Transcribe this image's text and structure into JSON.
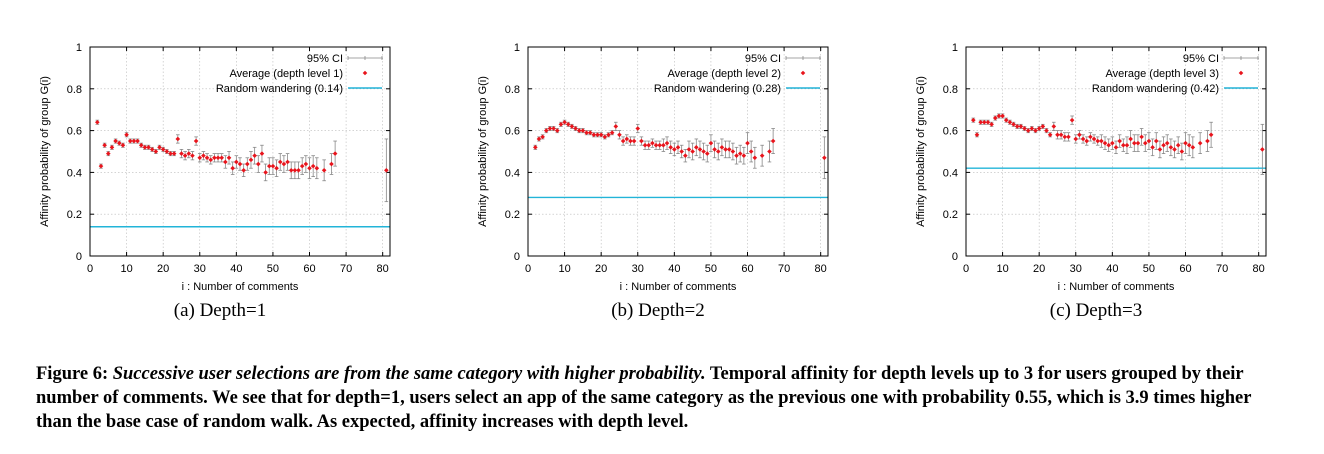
{
  "chart_data": [
    {
      "type": "scatter",
      "sublabel": "(a) Depth=1",
      "xlabel": "i : Number of comments",
      "ylabel": "Affinity probability of group G(i)",
      "xlim": [
        0,
        82
      ],
      "ylim": [
        0,
        1
      ],
      "xticks": [
        "0",
        "10",
        "20",
        "30",
        "40",
        "50",
        "60",
        "70",
        "80"
      ],
      "yticks": [
        "0",
        "0.2",
        "0.4",
        "0.6",
        "0.8",
        "1"
      ],
      "grid": true,
      "legend_position": "top-right",
      "legend": {
        "ci": "95% CI",
        "avg": "Average (depth level 1)",
        "random": "Random wandering (0.14)"
      },
      "random_baseline": 0.14,
      "x": [
        2,
        3,
        4,
        5,
        6,
        7,
        8,
        9,
        10,
        11,
        12,
        13,
        14,
        15,
        16,
        17,
        18,
        19,
        20,
        21,
        22,
        23,
        24,
        25,
        26,
        27,
        28,
        29,
        30,
        31,
        32,
        33,
        34,
        35,
        36,
        37,
        38,
        39,
        40,
        41,
        42,
        43,
        44,
        45,
        46,
        47,
        48,
        49,
        50,
        51,
        52,
        53,
        54,
        55,
        56,
        57,
        58,
        59,
        60,
        61,
        62,
        64,
        66,
        67,
        81
      ],
      "y": [
        0.64,
        0.43,
        0.53,
        0.49,
        0.52,
        0.55,
        0.54,
        0.53,
        0.58,
        0.55,
        0.55,
        0.55,
        0.53,
        0.52,
        0.52,
        0.51,
        0.5,
        0.52,
        0.51,
        0.5,
        0.49,
        0.49,
        0.56,
        0.49,
        0.48,
        0.49,
        0.48,
        0.55,
        0.47,
        0.48,
        0.47,
        0.46,
        0.47,
        0.47,
        0.47,
        0.45,
        0.47,
        0.42,
        0.45,
        0.44,
        0.41,
        0.44,
        0.46,
        0.48,
        0.44,
        0.49,
        0.4,
        0.43,
        0.43,
        0.42,
        0.45,
        0.44,
        0.45,
        0.41,
        0.41,
        0.41,
        0.43,
        0.44,
        0.42,
        0.43,
        0.42,
        0.41,
        0.44,
        0.49,
        0.41
      ],
      "ci": [
        0.01,
        0.01,
        0.01,
        0.01,
        0.01,
        0.01,
        0.01,
        0.01,
        0.01,
        0.01,
        0.01,
        0.01,
        0.01,
        0.01,
        0.01,
        0.01,
        0.01,
        0.01,
        0.01,
        0.01,
        0.01,
        0.01,
        0.02,
        0.02,
        0.02,
        0.02,
        0.02,
        0.02,
        0.02,
        0.02,
        0.02,
        0.02,
        0.02,
        0.02,
        0.02,
        0.03,
        0.03,
        0.03,
        0.03,
        0.03,
        0.03,
        0.03,
        0.04,
        0.04,
        0.04,
        0.04,
        0.04,
        0.04,
        0.04,
        0.04,
        0.04,
        0.04,
        0.04,
        0.04,
        0.04,
        0.04,
        0.04,
        0.04,
        0.05,
        0.05,
        0.05,
        0.05,
        0.05,
        0.06,
        0.15
      ]
    },
    {
      "type": "scatter",
      "sublabel": "(b) Depth=2",
      "xlabel": "i : Number of comments",
      "ylabel": "Affinity probability of group G(i)",
      "xlim": [
        0,
        82
      ],
      "ylim": [
        0,
        1
      ],
      "xticks": [
        "0",
        "10",
        "20",
        "30",
        "40",
        "50",
        "60",
        "70",
        "80"
      ],
      "yticks": [
        "0",
        "0.2",
        "0.4",
        "0.6",
        "0.8",
        "1"
      ],
      "grid": true,
      "legend_position": "top-right",
      "legend": {
        "ci": "95% CI",
        "avg": "Average (depth level 2)",
        "random": "Random wandering (0.28)"
      },
      "random_baseline": 0.28,
      "x": [
        2,
        3,
        4,
        5,
        6,
        7,
        8,
        9,
        10,
        11,
        12,
        13,
        14,
        15,
        16,
        17,
        18,
        19,
        20,
        21,
        22,
        23,
        24,
        25,
        26,
        27,
        28,
        29,
        30,
        31,
        32,
        33,
        34,
        35,
        36,
        37,
        38,
        39,
        40,
        41,
        42,
        43,
        44,
        45,
        46,
        47,
        48,
        49,
        50,
        51,
        52,
        53,
        54,
        55,
        56,
        57,
        58,
        59,
        60,
        61,
        62,
        64,
        66,
        67,
        81
      ],
      "y": [
        0.52,
        0.56,
        0.57,
        0.6,
        0.61,
        0.61,
        0.6,
        0.63,
        0.64,
        0.63,
        0.62,
        0.61,
        0.6,
        0.6,
        0.59,
        0.59,
        0.58,
        0.58,
        0.58,
        0.57,
        0.58,
        0.59,
        0.62,
        0.58,
        0.55,
        0.56,
        0.55,
        0.55,
        0.61,
        0.55,
        0.53,
        0.53,
        0.54,
        0.53,
        0.53,
        0.53,
        0.54,
        0.52,
        0.51,
        0.52,
        0.5,
        0.48,
        0.51,
        0.5,
        0.52,
        0.51,
        0.5,
        0.49,
        0.54,
        0.51,
        0.5,
        0.52,
        0.51,
        0.51,
        0.5,
        0.48,
        0.49,
        0.48,
        0.54,
        0.5,
        0.47,
        0.48,
        0.5,
        0.55,
        0.47
      ],
      "ci": [
        0.01,
        0.01,
        0.01,
        0.01,
        0.01,
        0.01,
        0.01,
        0.01,
        0.01,
        0.01,
        0.01,
        0.01,
        0.01,
        0.01,
        0.01,
        0.01,
        0.01,
        0.01,
        0.01,
        0.01,
        0.01,
        0.01,
        0.02,
        0.02,
        0.02,
        0.02,
        0.02,
        0.02,
        0.02,
        0.02,
        0.02,
        0.02,
        0.02,
        0.02,
        0.02,
        0.03,
        0.03,
        0.03,
        0.03,
        0.03,
        0.03,
        0.03,
        0.04,
        0.04,
        0.04,
        0.04,
        0.04,
        0.04,
        0.04,
        0.04,
        0.04,
        0.04,
        0.04,
        0.04,
        0.04,
        0.04,
        0.04,
        0.04,
        0.05,
        0.05,
        0.05,
        0.05,
        0.05,
        0.06,
        0.1
      ]
    },
    {
      "type": "scatter",
      "sublabel": "(c) Depth=3",
      "xlabel": "i : Number of comments",
      "ylabel": "Affinity probability of group G(i)",
      "xlim": [
        0,
        82
      ],
      "ylim": [
        0,
        1
      ],
      "xticks": [
        "0",
        "10",
        "20",
        "30",
        "40",
        "50",
        "60",
        "70",
        "80"
      ],
      "yticks": [
        "0",
        "0.2",
        "0.4",
        "0.6",
        "0.8",
        "1"
      ],
      "grid": true,
      "legend_position": "top-right",
      "legend": {
        "ci": "95% CI",
        "avg": "Average (depth level 3)",
        "random": "Random wandering (0.42)"
      },
      "random_baseline": 0.42,
      "x": [
        2,
        3,
        4,
        5,
        6,
        7,
        8,
        9,
        10,
        11,
        12,
        13,
        14,
        15,
        16,
        17,
        18,
        19,
        20,
        21,
        22,
        23,
        24,
        25,
        26,
        27,
        28,
        29,
        30,
        31,
        32,
        33,
        34,
        35,
        36,
        37,
        38,
        39,
        40,
        41,
        42,
        43,
        44,
        45,
        46,
        47,
        48,
        49,
        50,
        51,
        52,
        53,
        54,
        55,
        56,
        57,
        58,
        59,
        60,
        61,
        62,
        64,
        66,
        67,
        81
      ],
      "y": [
        0.65,
        0.58,
        0.64,
        0.64,
        0.64,
        0.63,
        0.66,
        0.67,
        0.67,
        0.65,
        0.64,
        0.63,
        0.62,
        0.62,
        0.61,
        0.6,
        0.61,
        0.6,
        0.61,
        0.62,
        0.6,
        0.58,
        0.62,
        0.58,
        0.58,
        0.57,
        0.57,
        0.65,
        0.56,
        0.58,
        0.56,
        0.55,
        0.57,
        0.56,
        0.55,
        0.55,
        0.54,
        0.53,
        0.54,
        0.52,
        0.55,
        0.53,
        0.53,
        0.56,
        0.54,
        0.54,
        0.57,
        0.54,
        0.55,
        0.52,
        0.55,
        0.51,
        0.53,
        0.54,
        0.52,
        0.51,
        0.53,
        0.5,
        0.54,
        0.53,
        0.52,
        0.54,
        0.55,
        0.58,
        0.51
      ],
      "ci": [
        0.01,
        0.01,
        0.01,
        0.01,
        0.01,
        0.01,
        0.01,
        0.01,
        0.01,
        0.01,
        0.01,
        0.01,
        0.01,
        0.01,
        0.01,
        0.01,
        0.01,
        0.01,
        0.01,
        0.01,
        0.01,
        0.01,
        0.02,
        0.02,
        0.02,
        0.02,
        0.02,
        0.02,
        0.02,
        0.02,
        0.02,
        0.02,
        0.02,
        0.02,
        0.02,
        0.03,
        0.03,
        0.03,
        0.03,
        0.03,
        0.03,
        0.03,
        0.04,
        0.04,
        0.04,
        0.04,
        0.04,
        0.04,
        0.04,
        0.04,
        0.04,
        0.04,
        0.04,
        0.04,
        0.04,
        0.04,
        0.04,
        0.04,
        0.05,
        0.05,
        0.05,
        0.05,
        0.05,
        0.06,
        0.12
      ]
    }
  ],
  "caption": {
    "prefix": "Figure 6: ",
    "italic": "Successive user selections are from the same category with higher probability.",
    "rest": " Temporal affinity for depth levels up to 3 for users grouped by their number of comments. We see that for depth=1, users select an app of the same category as the previous one with probability 0.55, which is 3.9 times higher than the base case of random walk. As expected, affinity increases with depth level."
  },
  "colors": {
    "marker": "#e8141c",
    "ci": "#888888",
    "baseline": "#22b4d8",
    "grid": "#bbbbbb"
  }
}
